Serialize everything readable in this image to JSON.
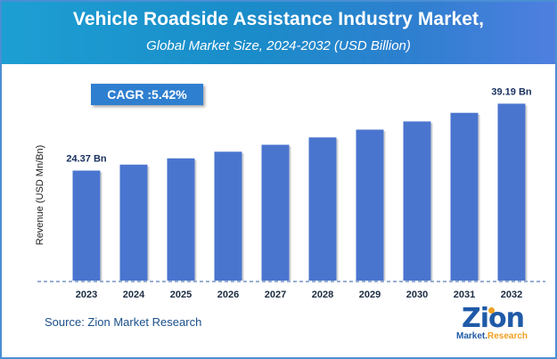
{
  "header": {
    "title": "Vehicle Roadside Assistance Industry Market,",
    "subtitle": "Global Market Size, 2024-2032 (USD Billion)"
  },
  "cagr": {
    "label": "CAGR : ",
    "value": "5.42%"
  },
  "chart_data": {
    "type": "bar",
    "title": "Vehicle Roadside Assistance Industry Market, Global Market Size, 2024-2032 (USD Billion)",
    "xlabel": "",
    "ylabel": "Revenue (USD Mn/Bn)",
    "categories": [
      "2023",
      "2024",
      "2025",
      "2026",
      "2027",
      "2028",
      "2029",
      "2030",
      "2031",
      "2032"
    ],
    "values": [
      24.37,
      25.69,
      27.08,
      28.55,
      30.09,
      31.72,
      33.44,
      35.25,
      37.16,
      39.19
    ],
    "data_labels": [
      {
        "index": 0,
        "text": "24.37 Bn"
      },
      {
        "index": 9,
        "text": "39.19 Bn"
      }
    ],
    "ylim": [
      0,
      44
    ],
    "grid": false,
    "colors": {
      "bar": "#4a75cf",
      "axis": "#5b7fb4"
    }
  },
  "source": "Source: Zion Market Research",
  "logo": {
    "main": "Zion",
    "sub_left": "Market.",
    "sub_right": "Research"
  }
}
